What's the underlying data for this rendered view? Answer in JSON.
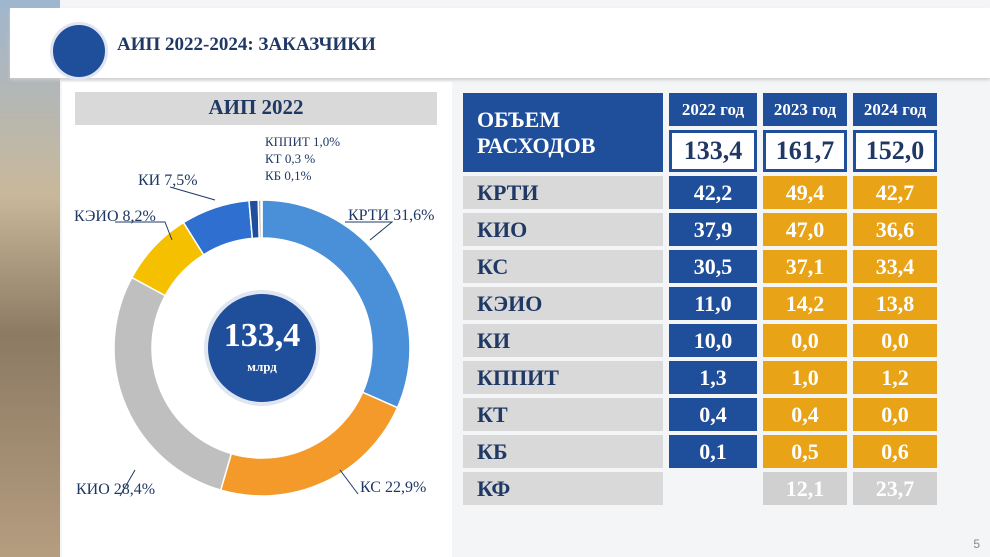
{
  "header": {
    "title": "АИП 2022-2024: ЗАКАЗЧИКИ",
    "page": "5"
  },
  "chart_data": {
    "type": "pie",
    "title": "АИП 2022",
    "center_label": "133,4",
    "center_unit": "млрд",
    "categories": [
      "КРТИ",
      "КС",
      "КИО",
      "КЭИО",
      "КИ",
      "КППИТ",
      "КТ",
      "КБ"
    ],
    "values": [
      31.6,
      22.9,
      28.4,
      8.2,
      7.5,
      1.0,
      0.3,
      0.1
    ],
    "value_labels": [
      "31,6%",
      "22,9%",
      "28,4%",
      "8,2%",
      "7,5%",
      "1,0%",
      "0,3 %",
      "0,1%"
    ],
    "colors": [
      "#4a90d9",
      "#f39a2b",
      "#bfbfbf",
      "#f5c000",
      "#2e6fd0",
      "#1f4e9a",
      "#a6a6a6",
      "#333333"
    ]
  },
  "table": {
    "corner": [
      "ОБЪЕМ",
      "РАСХОДОВ"
    ],
    "columns": [
      "2022 год",
      "2023 год",
      "2024 год"
    ],
    "totals": [
      "133,4",
      "161,7",
      "152,0"
    ],
    "rows": [
      [
        "КРТИ",
        "42,2",
        "49,4",
        "42,7"
      ],
      [
        "КИО",
        "37,9",
        "47,0",
        "36,6"
      ],
      [
        "КС",
        "30,5",
        "37,1",
        "33,4"
      ],
      [
        "КЭИО",
        "11,0",
        "14,2",
        "13,8"
      ],
      [
        "КИ",
        "10,0",
        "0,0",
        "0,0"
      ],
      [
        "КППИТ",
        "1,3",
        "1,0",
        "1,2"
      ],
      [
        "КТ",
        "0,4",
        "0,4",
        "0,0"
      ],
      [
        "КБ",
        "0,1",
        "0,5",
        "0,6"
      ],
      [
        "КФ",
        null,
        "12,1",
        "23,7"
      ]
    ]
  }
}
